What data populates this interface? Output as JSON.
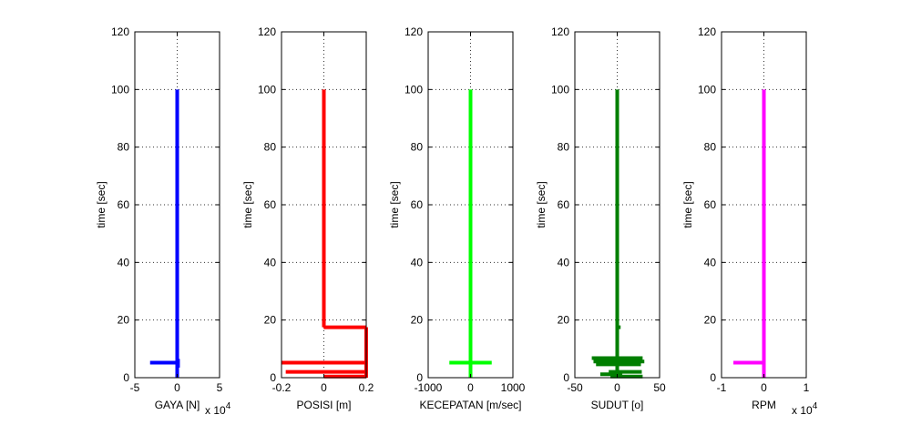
{
  "chart_data": [
    {
      "type": "line",
      "color": "#0000ff",
      "xlabel": "GAYA [N]",
      "ylabel": "time [sec]",
      "xlim": [
        -5,
        5
      ],
      "ylim": [
        0,
        120
      ],
      "xticks": [
        "-5",
        "0",
        "5"
      ],
      "yticks": [
        "0",
        "20",
        "40",
        "60",
        "80",
        "100",
        "120"
      ],
      "multiplier": {
        "base": "x 10",
        "exp": "4"
      },
      "grid": true,
      "segments": [
        {
          "x": [
            0,
            0
          ],
          "y": [
            0,
            100
          ]
        },
        {
          "x": [
            -3.2,
            0.2
          ],
          "y": [
            5.2,
            5.2
          ]
        },
        {
          "x": [
            0.1,
            0.1
          ],
          "y": [
            3.5,
            6.5
          ]
        }
      ]
    },
    {
      "type": "line",
      "color": "#ff0000",
      "xlabel": "POSISI [m]",
      "ylabel": "time [sec]",
      "xlim": [
        -0.2,
        0.2
      ],
      "ylim": [
        0,
        120
      ],
      "xticks": [
        "-0.2",
        "0",
        "0.2"
      ],
      "yticks": [
        "0",
        "20",
        "40",
        "60",
        "80",
        "100",
        "120"
      ],
      "multiplier": null,
      "grid": true,
      "segments": [
        {
          "x": [
            0,
            0
          ],
          "y": [
            17.5,
            100
          ]
        },
        {
          "x": [
            -0.001,
            0.2
          ],
          "y": [
            17.5,
            17.5
          ]
        },
        {
          "x": [
            0.2,
            0.2
          ],
          "y": [
            0,
            17.5
          ]
        },
        {
          "x": [
            -0.2,
            0.2
          ],
          "y": [
            5.2,
            5.2
          ]
        },
        {
          "x": [
            -0.18,
            0.2
          ],
          "y": [
            2.0,
            2.0
          ]
        },
        {
          "x": [
            0,
            0.2
          ],
          "y": [
            0.4,
            0.4
          ]
        }
      ]
    },
    {
      "type": "line",
      "color": "#00ff00",
      "xlabel": "KECEPATAN [m/sec]",
      "ylabel": "time [sec]",
      "xlim": [
        -1000,
        1000
      ],
      "ylim": [
        0,
        120
      ],
      "xticks": [
        "-1000",
        "0",
        "1000"
      ],
      "yticks": [
        "0",
        "20",
        "40",
        "60",
        "80",
        "100",
        "120"
      ],
      "multiplier": null,
      "grid": true,
      "segments": [
        {
          "x": [
            0,
            0
          ],
          "y": [
            0,
            100
          ]
        },
        {
          "x": [
            -500,
            500
          ],
          "y": [
            5.2,
            5.2
          ]
        },
        {
          "x": [
            0,
            0
          ],
          "y": [
            3,
            8
          ]
        }
      ]
    },
    {
      "type": "line",
      "color": "#007f00",
      "xlabel": "SUDUT [o]",
      "ylabel": "time [sec]",
      "xlim": [
        -50,
        50
      ],
      "ylim": [
        0,
        120
      ],
      "xticks": [
        "-50",
        "0",
        "50"
      ],
      "yticks": [
        "0",
        "20",
        "40",
        "60",
        "80",
        "100",
        "120"
      ],
      "multiplier": null,
      "grid": true,
      "segments": [
        {
          "x": [
            0,
            0
          ],
          "y": [
            0,
            100
          ]
        },
        {
          "x": [
            0,
            4
          ],
          "y": [
            17.5,
            17.5
          ]
        },
        {
          "x": [
            -30,
            30
          ],
          "y": [
            6.8,
            6.8
          ]
        },
        {
          "x": [
            -28,
            32
          ],
          "y": [
            5.6,
            5.6
          ]
        },
        {
          "x": [
            -25,
            28
          ],
          "y": [
            4.6,
            4.6
          ]
        },
        {
          "x": [
            -10,
            29
          ],
          "y": [
            2.0,
            2.0
          ]
        },
        {
          "x": [
            -20,
            6
          ],
          "y": [
            1.2,
            1.2
          ]
        },
        {
          "x": [
            -8,
            30
          ],
          "y": [
            0.4,
            0.4
          ]
        }
      ]
    },
    {
      "type": "line",
      "color": "#ff00ff",
      "xlabel": "RPM",
      "ylabel": "time [sec]",
      "xlim": [
        -1,
        1
      ],
      "ylim": [
        0,
        120
      ],
      "xticks": [
        "-1",
        "0",
        "1"
      ],
      "yticks": [
        "0",
        "20",
        "40",
        "60",
        "80",
        "100",
        "120"
      ],
      "multiplier": {
        "base": "x 10",
        "exp": "4"
      },
      "grid": true,
      "segments": [
        {
          "x": [
            0,
            0
          ],
          "y": [
            0,
            100
          ]
        },
        {
          "x": [
            -0.72,
            0.04
          ],
          "y": [
            5.2,
            5.2
          ]
        }
      ]
    }
  ]
}
